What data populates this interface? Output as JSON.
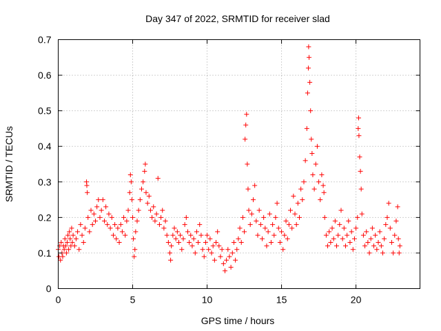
{
  "chart_data": {
    "type": "scatter",
    "title": "Day 347 of 2022, SRMTID for receiver slad",
    "xlabel": "GPS time / hours",
    "ylabel": "SRMTID / TECUs",
    "xlim": [
      0,
      24.3
    ],
    "ylim": [
      0,
      0.7
    ],
    "xticks": [
      0,
      5,
      10,
      15,
      20
    ],
    "xtick_labels": [
      "0",
      "5",
      "10",
      "15",
      "20"
    ],
    "yticks": [
      0,
      0.1,
      0.2,
      0.3,
      0.4,
      0.5,
      0.6,
      0.7
    ],
    "ytick_labels": [
      "0",
      "0.1",
      "0.2",
      "0.3",
      "0.4",
      "0.5",
      "0.6",
      "0.7"
    ],
    "grid": true,
    "marker": "+",
    "series": [
      {
        "name": "SRMTID",
        "color": "#ff0000",
        "points": [
          [
            0.0,
            0.11
          ],
          [
            0.05,
            0.09
          ],
          [
            0.1,
            0.12
          ],
          [
            0.15,
            0.08
          ],
          [
            0.2,
            0.13
          ],
          [
            0.25,
            0.1
          ],
          [
            0.3,
            0.09
          ],
          [
            0.35,
            0.12
          ],
          [
            0.4,
            0.11
          ],
          [
            0.45,
            0.14
          ],
          [
            0.5,
            0.12
          ],
          [
            0.55,
            0.1
          ],
          [
            0.6,
            0.13
          ],
          [
            0.65,
            0.15
          ],
          [
            0.7,
            0.11
          ],
          [
            0.75,
            0.16
          ],
          [
            0.8,
            0.14
          ],
          [
            0.85,
            0.12
          ],
          [
            0.9,
            0.17
          ],
          [
            0.95,
            0.13
          ],
          [
            1.0,
            0.15
          ],
          [
            1.1,
            0.12
          ],
          [
            1.2,
            0.14
          ],
          [
            1.3,
            0.16
          ],
          [
            1.4,
            0.11
          ],
          [
            1.5,
            0.18
          ],
          [
            1.6,
            0.15
          ],
          [
            1.7,
            0.13
          ],
          [
            1.8,
            0.17
          ],
          [
            1.9,
            0.3
          ],
          [
            1.92,
            0.29
          ],
          [
            1.95,
            0.27
          ],
          [
            2.0,
            0.2
          ],
          [
            2.1,
            0.16
          ],
          [
            2.2,
            0.22
          ],
          [
            2.3,
            0.18
          ],
          [
            2.4,
            0.21
          ],
          [
            2.5,
            0.19
          ],
          [
            2.6,
            0.23
          ],
          [
            2.7,
            0.25
          ],
          [
            2.8,
            0.2
          ],
          [
            2.9,
            0.22
          ],
          [
            3.0,
            0.25
          ],
          [
            3.1,
            0.19
          ],
          [
            3.2,
            0.23
          ],
          [
            3.3,
            0.18
          ],
          [
            3.4,
            0.21
          ],
          [
            3.5,
            0.17
          ],
          [
            3.6,
            0.2
          ],
          [
            3.7,
            0.15
          ],
          [
            3.8,
            0.18
          ],
          [
            3.9,
            0.14
          ],
          [
            4.0,
            0.17
          ],
          [
            4.1,
            0.13
          ],
          [
            4.2,
            0.18
          ],
          [
            4.3,
            0.16
          ],
          [
            4.4,
            0.2
          ],
          [
            4.5,
            0.15
          ],
          [
            4.6,
            0.19
          ],
          [
            4.7,
            0.22
          ],
          [
            4.8,
            0.27
          ],
          [
            4.85,
            0.32
          ],
          [
            4.9,
            0.3
          ],
          [
            4.95,
            0.25
          ],
          [
            5.0,
            0.2
          ],
          [
            5.05,
            0.14
          ],
          [
            5.1,
            0.09
          ],
          [
            5.15,
            0.11
          ],
          [
            5.2,
            0.16
          ],
          [
            5.3,
            0.19
          ],
          [
            5.4,
            0.22
          ],
          [
            5.5,
            0.25
          ],
          [
            5.6,
            0.28
          ],
          [
            5.7,
            0.3
          ],
          [
            5.8,
            0.33
          ],
          [
            5.85,
            0.35
          ],
          [
            5.9,
            0.27
          ],
          [
            6.0,
            0.24
          ],
          [
            6.1,
            0.26
          ],
          [
            6.2,
            0.22
          ],
          [
            6.3,
            0.2
          ],
          [
            6.4,
            0.23
          ],
          [
            6.5,
            0.19
          ],
          [
            6.6,
            0.21
          ],
          [
            6.7,
            0.31
          ],
          [
            6.8,
            0.18
          ],
          [
            6.9,
            0.2
          ],
          [
            7.0,
            0.22
          ],
          [
            7.1,
            0.17
          ],
          [
            7.2,
            0.19
          ],
          [
            7.3,
            0.15
          ],
          [
            7.4,
            0.13
          ],
          [
            7.5,
            0.1
          ],
          [
            7.55,
            0.08
          ],
          [
            7.6,
            0.12
          ],
          [
            7.7,
            0.15
          ],
          [
            7.8,
            0.17
          ],
          [
            7.9,
            0.14
          ],
          [
            8.0,
            0.16
          ],
          [
            8.1,
            0.13
          ],
          [
            8.2,
            0.15
          ],
          [
            8.3,
            0.11
          ],
          [
            8.4,
            0.14
          ],
          [
            8.5,
            0.18
          ],
          [
            8.6,
            0.2
          ],
          [
            8.7,
            0.16
          ],
          [
            8.8,
            0.13
          ],
          [
            8.9,
            0.15
          ],
          [
            9.0,
            0.12
          ],
          [
            9.1,
            0.14
          ],
          [
            9.2,
            0.1
          ],
          [
            9.3,
            0.16
          ],
          [
            9.4,
            0.13
          ],
          [
            9.5,
            0.18
          ],
          [
            9.6,
            0.15
          ],
          [
            9.7,
            0.11
          ],
          [
            9.8,
            0.09
          ],
          [
            9.9,
            0.13
          ],
          [
            10.0,
            0.15
          ],
          [
            10.1,
            0.11
          ],
          [
            10.2,
            0.14
          ],
          [
            10.3,
            0.1
          ],
          [
            10.4,
            0.12
          ],
          [
            10.5,
            0.08
          ],
          [
            10.6,
            0.13
          ],
          [
            10.7,
            0.16
          ],
          [
            10.8,
            0.12
          ],
          [
            10.9,
            0.09
          ],
          [
            11.0,
            0.11
          ],
          [
            11.1,
            0.07
          ],
          [
            11.2,
            0.05
          ],
          [
            11.3,
            0.08
          ],
          [
            11.4,
            0.11
          ],
          [
            11.5,
            0.09
          ],
          [
            11.6,
            0.06
          ],
          [
            11.7,
            0.1
          ],
          [
            11.8,
            0.13
          ],
          [
            11.9,
            0.08
          ],
          [
            12.0,
            0.11
          ],
          [
            12.1,
            0.14
          ],
          [
            12.2,
            0.17
          ],
          [
            12.3,
            0.13
          ],
          [
            12.4,
            0.2
          ],
          [
            12.5,
            0.16
          ],
          [
            12.55,
            0.42
          ],
          [
            12.6,
            0.46
          ],
          [
            12.65,
            0.49
          ],
          [
            12.7,
            0.35
          ],
          [
            12.75,
            0.28
          ],
          [
            12.8,
            0.22
          ],
          [
            12.9,
            0.18
          ],
          [
            13.0,
            0.21
          ],
          [
            13.1,
            0.25
          ],
          [
            13.2,
            0.29
          ],
          [
            13.3,
            0.19
          ],
          [
            13.4,
            0.15
          ],
          [
            13.5,
            0.22
          ],
          [
            13.6,
            0.18
          ],
          [
            13.7,
            0.14
          ],
          [
            13.8,
            0.2
          ],
          [
            13.9,
            0.17
          ],
          [
            14.0,
            0.12
          ],
          [
            14.1,
            0.16
          ],
          [
            14.2,
            0.21
          ],
          [
            14.3,
            0.13
          ],
          [
            14.4,
            0.18
          ],
          [
            14.5,
            0.15
          ],
          [
            14.6,
            0.2
          ],
          [
            14.7,
            0.24
          ],
          [
            14.8,
            0.17
          ],
          [
            14.9,
            0.13
          ],
          [
            15.0,
            0.16
          ],
          [
            15.1,
            0.11
          ],
          [
            15.2,
            0.15
          ],
          [
            15.3,
            0.19
          ],
          [
            15.4,
            0.14
          ],
          [
            15.5,
            0.18
          ],
          [
            15.6,
            0.22
          ],
          [
            15.7,
            0.17
          ],
          [
            15.8,
            0.26
          ],
          [
            15.9,
            0.21
          ],
          [
            16.0,
            0.18
          ],
          [
            16.1,
            0.24
          ],
          [
            16.2,
            0.2
          ],
          [
            16.3,
            0.28
          ],
          [
            16.4,
            0.25
          ],
          [
            16.5,
            0.3
          ],
          [
            16.6,
            0.36
          ],
          [
            16.7,
            0.45
          ],
          [
            16.75,
            0.55
          ],
          [
            16.8,
            0.62
          ],
          [
            16.82,
            0.68
          ],
          [
            16.85,
            0.65
          ],
          [
            16.9,
            0.58
          ],
          [
            16.95,
            0.5
          ],
          [
            17.0,
            0.42
          ],
          [
            17.05,
            0.38
          ],
          [
            17.1,
            0.32
          ],
          [
            17.2,
            0.28
          ],
          [
            17.3,
            0.35
          ],
          [
            17.4,
            0.4
          ],
          [
            17.5,
            0.3
          ],
          [
            17.6,
            0.25
          ],
          [
            17.7,
            0.32
          ],
          [
            17.8,
            0.29
          ],
          [
            17.85,
            0.27
          ],
          [
            17.9,
            0.2
          ],
          [
            18.0,
            0.15
          ],
          [
            18.1,
            0.12
          ],
          [
            18.2,
            0.16
          ],
          [
            18.3,
            0.13
          ],
          [
            18.4,
            0.17
          ],
          [
            18.5,
            0.14
          ],
          [
            18.6,
            0.19
          ],
          [
            18.7,
            0.12
          ],
          [
            18.8,
            0.15
          ],
          [
            18.9,
            0.18
          ],
          [
            19.0,
            0.22
          ],
          [
            19.1,
            0.14
          ],
          [
            19.2,
            0.17
          ],
          [
            19.3,
            0.12
          ],
          [
            19.4,
            0.15
          ],
          [
            19.5,
            0.19
          ],
          [
            19.6,
            0.13
          ],
          [
            19.7,
            0.16
          ],
          [
            19.8,
            0.11
          ],
          [
            19.9,
            0.14
          ],
          [
            20.0,
            0.17
          ],
          [
            20.1,
            0.2
          ],
          [
            20.15,
            0.45
          ],
          [
            20.18,
            0.48
          ],
          [
            20.2,
            0.43
          ],
          [
            20.25,
            0.37
          ],
          [
            20.3,
            0.33
          ],
          [
            20.35,
            0.28
          ],
          [
            20.4,
            0.21
          ],
          [
            20.5,
            0.15
          ],
          [
            20.6,
            0.12
          ],
          [
            20.7,
            0.16
          ],
          [
            20.8,
            0.13
          ],
          [
            20.9,
            0.1
          ],
          [
            21.0,
            0.14
          ],
          [
            21.1,
            0.17
          ],
          [
            21.2,
            0.12
          ],
          [
            21.3,
            0.15
          ],
          [
            21.4,
            0.11
          ],
          [
            21.5,
            0.13
          ],
          [
            21.6,
            0.16
          ],
          [
            21.7,
            0.12
          ],
          [
            21.8,
            0.1
          ],
          [
            21.9,
            0.14
          ],
          [
            22.0,
            0.18
          ],
          [
            22.1,
            0.2
          ],
          [
            22.2,
            0.24
          ],
          [
            22.3,
            0.17
          ],
          [
            22.4,
            0.13
          ],
          [
            22.5,
            0.1
          ],
          [
            22.6,
            0.15
          ],
          [
            22.7,
            0.19
          ],
          [
            22.8,
            0.23
          ],
          [
            22.85,
            0.14
          ],
          [
            22.9,
            0.1
          ],
          [
            22.95,
            0.12
          ]
        ]
      }
    ]
  }
}
